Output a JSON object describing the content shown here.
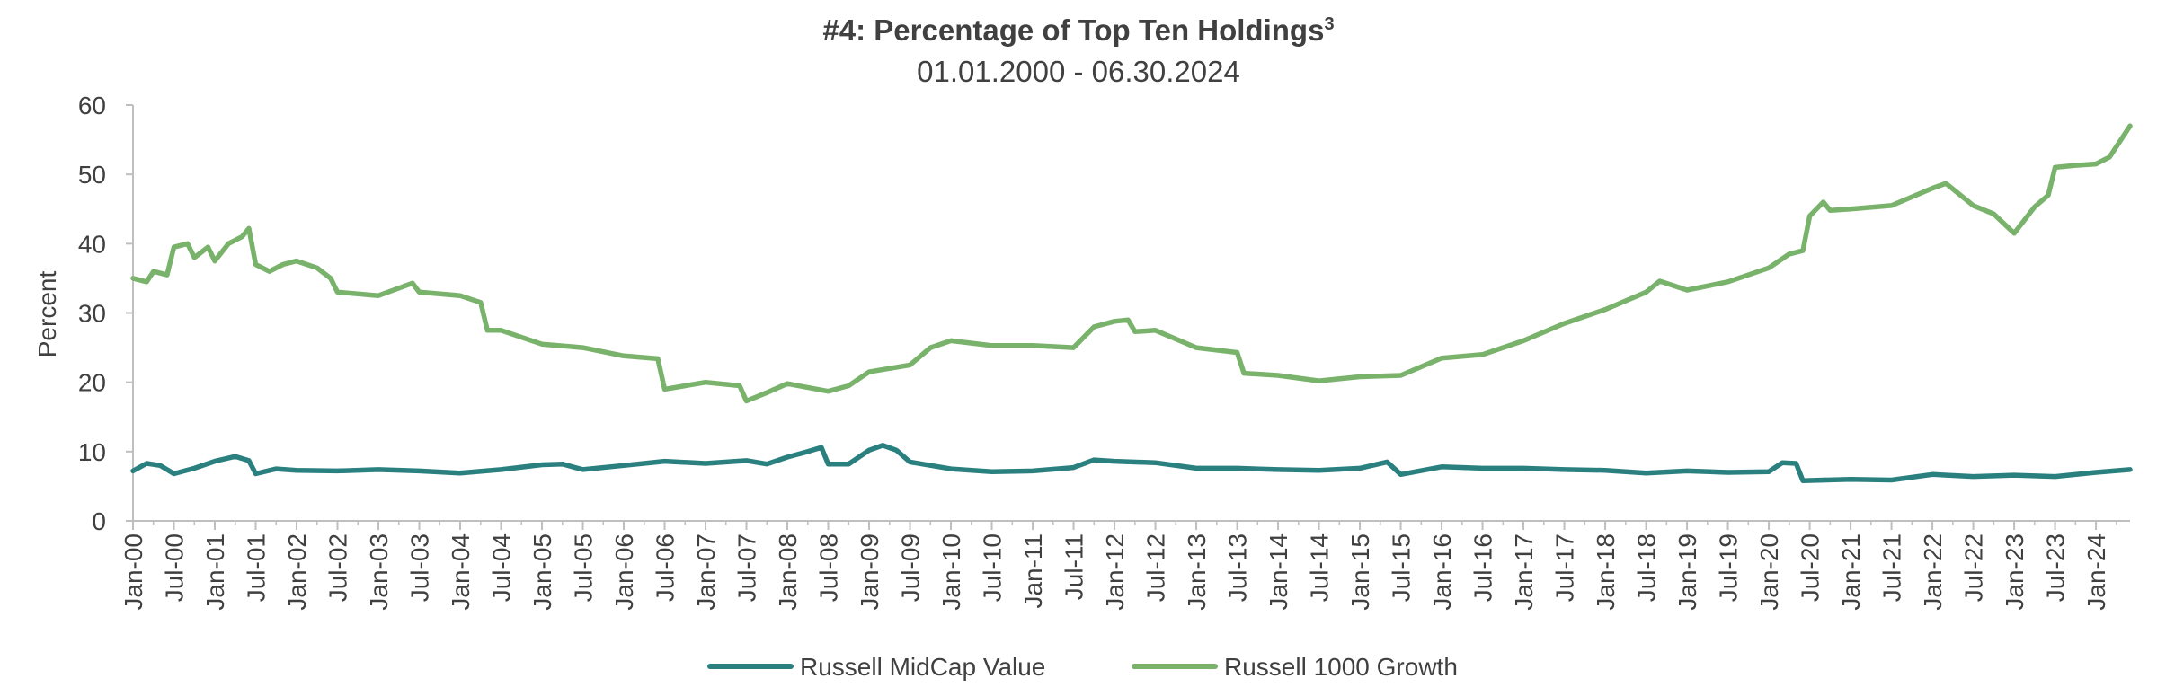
{
  "chart_data": {
    "type": "line",
    "title": "#4: Percentage of Top Ten Holdings",
    "title_superscript": "3",
    "subtitle": "01.01.2000 - 06.30.2024",
    "ylabel": "Percent",
    "xlabel": "",
    "ylim": [
      0,
      60
    ],
    "yticks": [
      "0",
      "10",
      "20",
      "30",
      "40",
      "50",
      "60"
    ],
    "x_start": "Jan-00",
    "x_end": "Jun-24",
    "xtick_labels": [
      "Jan-00",
      "Jul-00",
      "Jan-01",
      "Jul-01",
      "Jan-02",
      "Jul-02",
      "Jan-03",
      "Jul-03",
      "Jan-04",
      "Jul-04",
      "Jan-05",
      "Jul-05",
      "Jan-06",
      "Jul-06",
      "Jan-07",
      "Jul-07",
      "Jan-08",
      "Jul-08",
      "Jan-09",
      "Jul-09",
      "Jan-10",
      "Jul-10",
      "Jan-11",
      "Jul-11",
      "Jan-12",
      "Jul-12",
      "Jan-13",
      "Jul-13",
      "Jan-14",
      "Jul-14",
      "Jan-15",
      "Jul-15",
      "Jan-16",
      "Jul-16",
      "Jan-17",
      "Jul-17",
      "Jan-18",
      "Jul-18",
      "Jan-19",
      "Jul-19",
      "Jan-20",
      "Jul-20",
      "Jan-21",
      "Jul-21",
      "Jan-22",
      "Jul-22",
      "Jan-23",
      "Jul-23",
      "Jan-24"
    ],
    "grid": false,
    "legend_position": "bottom-center",
    "series": [
      {
        "name": "Russell MidCap Value",
        "color": "#2a7f7f",
        "points": [
          [
            "Jan-00",
            7.2
          ],
          [
            "Mar-00",
            8.3
          ],
          [
            "May-00",
            8.0
          ],
          [
            "Jul-00",
            6.8
          ],
          [
            "Oct-00",
            7.6
          ],
          [
            "Jan-01",
            8.6
          ],
          [
            "Apr-01",
            9.3
          ],
          [
            "Jun-01",
            8.7
          ],
          [
            "Jul-01",
            6.8
          ],
          [
            "Oct-01",
            7.5
          ],
          [
            "Jan-02",
            7.3
          ],
          [
            "Jul-02",
            7.2
          ],
          [
            "Jan-03",
            7.4
          ],
          [
            "Jul-03",
            7.2
          ],
          [
            "Jan-04",
            6.9
          ],
          [
            "Jul-04",
            7.4
          ],
          [
            "Jan-05",
            8.1
          ],
          [
            "Apr-05",
            8.2
          ],
          [
            "Jul-05",
            7.4
          ],
          [
            "Jan-06",
            8.0
          ],
          [
            "Jul-06",
            8.6
          ],
          [
            "Jan-07",
            8.3
          ],
          [
            "Jul-07",
            8.7
          ],
          [
            "Oct-07",
            8.2
          ],
          [
            "Jan-08",
            9.2
          ],
          [
            "Apr-08",
            10.0
          ],
          [
            "Jun-08",
            10.6
          ],
          [
            "Jul-08",
            8.2
          ],
          [
            "Oct-08",
            8.2
          ],
          [
            "Jan-09",
            10.2
          ],
          [
            "Mar-09",
            10.9
          ],
          [
            "May-09",
            10.2
          ],
          [
            "Jul-09",
            8.5
          ],
          [
            "Jan-10",
            7.5
          ],
          [
            "Jul-10",
            7.1
          ],
          [
            "Jan-11",
            7.2
          ],
          [
            "Jul-11",
            7.7
          ],
          [
            "Oct-11",
            8.8
          ],
          [
            "Jan-12",
            8.6
          ],
          [
            "Jul-12",
            8.4
          ],
          [
            "Jan-13",
            7.6
          ],
          [
            "Jul-13",
            7.6
          ],
          [
            "Jan-14",
            7.4
          ],
          [
            "Jul-14",
            7.3
          ],
          [
            "Jan-15",
            7.6
          ],
          [
            "May-15",
            8.5
          ],
          [
            "Jul-15",
            6.7
          ],
          [
            "Jan-16",
            7.8
          ],
          [
            "Jul-16",
            7.6
          ],
          [
            "Jan-17",
            7.6
          ],
          [
            "Jul-17",
            7.4
          ],
          [
            "Jan-18",
            7.3
          ],
          [
            "Jul-18",
            6.9
          ],
          [
            "Jan-19",
            7.2
          ],
          [
            "Jul-19",
            7.0
          ],
          [
            "Jan-20",
            7.1
          ],
          [
            "Mar-20",
            8.4
          ],
          [
            "May-20",
            8.3
          ],
          [
            "Jun-20",
            5.8
          ],
          [
            "Jan-21",
            6.0
          ],
          [
            "Jul-21",
            5.9
          ],
          [
            "Jan-22",
            6.7
          ],
          [
            "Jul-22",
            6.4
          ],
          [
            "Jan-23",
            6.6
          ],
          [
            "Jul-23",
            6.4
          ],
          [
            "Jan-24",
            7.0
          ],
          [
            "Jun-24",
            7.4
          ]
        ]
      },
      {
        "name": "Russell 1000 Growth",
        "color": "#79b26a",
        "points": [
          [
            "Jan-00",
            35.0
          ],
          [
            "Mar-00",
            34.5
          ],
          [
            "Apr-00",
            36.0
          ],
          [
            "Jun-00",
            35.5
          ],
          [
            "Jul-00",
            39.5
          ],
          [
            "Sep-00",
            40.0
          ],
          [
            "Oct-00",
            38.0
          ],
          [
            "Dec-00",
            39.5
          ],
          [
            "Jan-01",
            37.5
          ],
          [
            "Mar-01",
            40.0
          ],
          [
            "May-01",
            41.0
          ],
          [
            "Jun-01",
            42.2
          ],
          [
            "Jul-01",
            37.0
          ],
          [
            "Sep-01",
            36.0
          ],
          [
            "Nov-01",
            37.0
          ],
          [
            "Jan-02",
            37.5
          ],
          [
            "Apr-02",
            36.5
          ],
          [
            "Jun-02",
            35.0
          ],
          [
            "Jul-02",
            33.0
          ],
          [
            "Jan-03",
            32.5
          ],
          [
            "Jun-03",
            34.3
          ],
          [
            "Jul-03",
            33.0
          ],
          [
            "Jan-04",
            32.5
          ],
          [
            "Apr-04",
            31.5
          ],
          [
            "May-04",
            27.5
          ],
          [
            "Jul-04",
            27.5
          ],
          [
            "Jan-05",
            25.5
          ],
          [
            "Jul-05",
            25.0
          ],
          [
            "Jan-06",
            23.8
          ],
          [
            "Jun-06",
            23.4
          ],
          [
            "Jul-06",
            19.0
          ],
          [
            "Jan-07",
            20.0
          ],
          [
            "Jun-07",
            19.5
          ],
          [
            "Jul-07",
            17.3
          ],
          [
            "Oct-07",
            18.5
          ],
          [
            "Jan-08",
            19.8
          ],
          [
            "Jul-08",
            18.7
          ],
          [
            "Oct-08",
            19.5
          ],
          [
            "Jan-09",
            21.5
          ],
          [
            "Jul-09",
            22.5
          ],
          [
            "Oct-09",
            25.0
          ],
          [
            "Jan-10",
            26.0
          ],
          [
            "Jul-10",
            25.3
          ],
          [
            "Jan-11",
            25.3
          ],
          [
            "Jul-11",
            25.0
          ],
          [
            "Oct-11",
            28.0
          ],
          [
            "Jan-12",
            28.8
          ],
          [
            "Mar-12",
            29.0
          ],
          [
            "Apr-12",
            27.3
          ],
          [
            "Jul-12",
            27.5
          ],
          [
            "Jan-13",
            25.0
          ],
          [
            "Jul-13",
            24.3
          ],
          [
            "Aug-13",
            21.3
          ],
          [
            "Jan-14",
            21.0
          ],
          [
            "Jul-14",
            20.2
          ],
          [
            "Jan-15",
            20.8
          ],
          [
            "Jul-15",
            21.0
          ],
          [
            "Jan-16",
            23.5
          ],
          [
            "Jul-16",
            24.0
          ],
          [
            "Jan-17",
            26.0
          ],
          [
            "Jul-17",
            28.5
          ],
          [
            "Oct-17",
            29.5
          ],
          [
            "Jan-18",
            30.5
          ],
          [
            "Jul-18",
            33.0
          ],
          [
            "Sep-18",
            34.6
          ],
          [
            "Jan-19",
            33.3
          ],
          [
            "Jul-19",
            34.5
          ],
          [
            "Jan-20",
            36.5
          ],
          [
            "Apr-20",
            38.5
          ],
          [
            "Jun-20",
            39.0
          ],
          [
            "Jul-20",
            44.0
          ],
          [
            "Sep-20",
            46.0
          ],
          [
            "Oct-20",
            44.8
          ],
          [
            "Jan-21",
            45.0
          ],
          [
            "Jul-21",
            45.5
          ],
          [
            "Jan-22",
            48.0
          ],
          [
            "Mar-22",
            48.7
          ],
          [
            "Jul-22",
            45.5
          ],
          [
            "Oct-22",
            44.3
          ],
          [
            "Jan-23",
            41.5
          ],
          [
            "Apr-23",
            45.3
          ],
          [
            "Jun-23",
            47.0
          ],
          [
            "Jul-23",
            51.0
          ],
          [
            "Oct-23",
            51.3
          ],
          [
            "Jan-24",
            51.5
          ],
          [
            "Mar-24",
            52.5
          ],
          [
            "Jun-24",
            57.0
          ]
        ]
      }
    ]
  }
}
